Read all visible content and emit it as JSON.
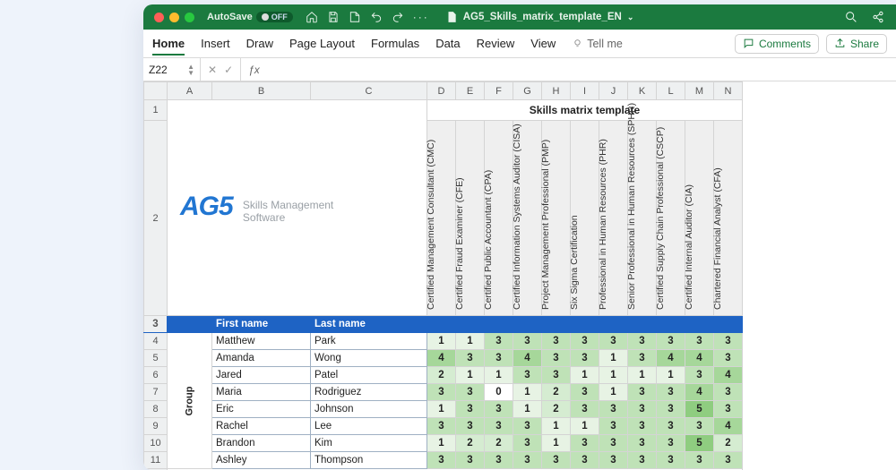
{
  "titlebar": {
    "autosave_label": "AutoSave",
    "autosave_state": "OFF",
    "filename": "AG5_Skills_matrix_template_EN"
  },
  "ribbon": {
    "tabs": [
      "Home",
      "Insert",
      "Draw",
      "Page Layout",
      "Formulas",
      "Data",
      "Review",
      "View"
    ],
    "tellme": "Tell me",
    "comments": "Comments",
    "share": "Share"
  },
  "formula_bar": {
    "cell_ref": "Z22"
  },
  "column_letters": [
    "A",
    "B",
    "C",
    "D",
    "E",
    "F",
    "G",
    "H",
    "I",
    "J",
    "K",
    "L",
    "M",
    "N"
  ],
  "logo": {
    "brand": "AG5",
    "tagline1": "Skills Management",
    "tagline2": "Software"
  },
  "skills_matrix_title": "Skills matrix template",
  "skills": [
    "Certified Management Consultant (CMC)",
    "Certified Fraud Examiner (CFE)",
    "Certified Public Accountant (CPA)",
    "Certified Information Systems Auditor (CISA)",
    "Project Management Professional (PMP)",
    "Six Sigma Certification",
    "Professional in Human Resources (PHR)",
    "Senior Professional in Human Resources (SPHR)",
    "Certified Supply Chain Professional (CSCP)",
    "Certified Internal Auditor (CIA)",
    "Chartered Financial Analyst (CFA)"
  ],
  "header_row": {
    "first": "First name",
    "last": "Last name"
  },
  "group_label": "Group",
  "people": [
    {
      "first": "Matthew",
      "last": "Park",
      "v": [
        1,
        1,
        3,
        3,
        3,
        3,
        3,
        3,
        3,
        3,
        3
      ]
    },
    {
      "first": "Amanda",
      "last": "Wong",
      "v": [
        4,
        3,
        3,
        4,
        3,
        3,
        1,
        3,
        4,
        4,
        3
      ]
    },
    {
      "first": "Jared",
      "last": "Patel",
      "v": [
        2,
        1,
        1,
        3,
        3,
        1,
        1,
        1,
        1,
        3,
        4
      ]
    },
    {
      "first": "Maria",
      "last": "Rodriguez",
      "v": [
        3,
        3,
        0,
        1,
        2,
        3,
        1,
        3,
        3,
        4,
        3
      ]
    },
    {
      "first": "Eric",
      "last": "Johnson",
      "v": [
        1,
        3,
        3,
        1,
        2,
        3,
        3,
        3,
        3,
        5,
        3
      ]
    },
    {
      "first": "Rachel",
      "last": "Lee",
      "v": [
        3,
        3,
        3,
        3,
        1,
        1,
        3,
        3,
        3,
        3,
        4
      ]
    },
    {
      "first": "Brandon",
      "last": "Kim",
      "v": [
        1,
        2,
        2,
        3,
        1,
        3,
        3,
        3,
        3,
        5,
        2
      ]
    },
    {
      "first": "Ashley",
      "last": "Thompson",
      "v": [
        3,
        3,
        3,
        3,
        3,
        3,
        3,
        3,
        3,
        3,
        3
      ]
    }
  ],
  "colors": {
    "titlebar": "#1b7a3f",
    "brand": "#2176d2",
    "header_blue": "#1e63c4",
    "scale": [
      "#ffffff",
      "#e7f3e4",
      "#d5ecd1",
      "#bfe2b7",
      "#a6d79a",
      "#8fcd80"
    ]
  }
}
